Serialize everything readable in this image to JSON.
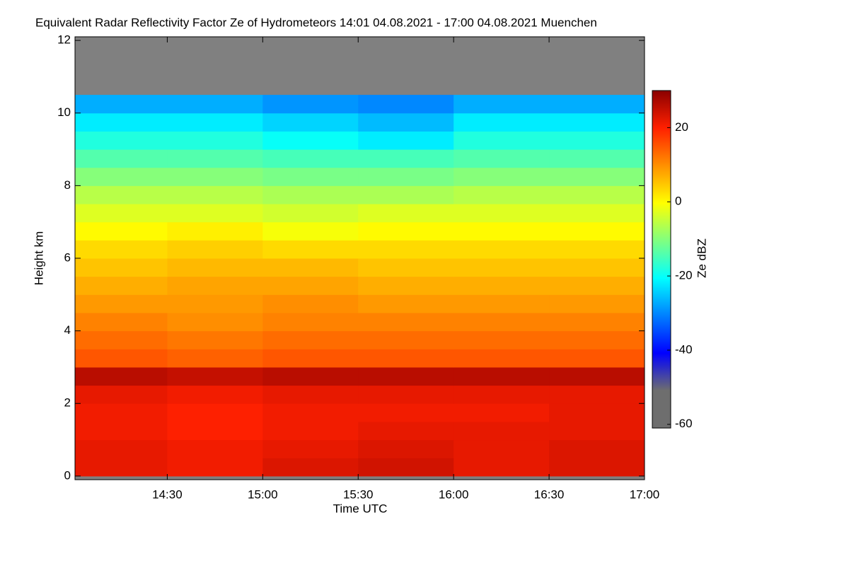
{
  "chart_data": {
    "type": "heatmap",
    "title": "Equivalent Radar Reflectivity Factor Ze of Hydrometeors   14:01 04.08.2021 - 17:00 04.08.2021 Muenchen",
    "xlabel": "Time UTC",
    "ylabel": "Height km",
    "colorbar_label": "Ze dBZ",
    "xlim": [
      841,
      1020
    ],
    "xticks": [
      {
        "value": 870,
        "label": "14:30"
      },
      {
        "value": 900,
        "label": "15:00"
      },
      {
        "value": 930,
        "label": "15:30"
      },
      {
        "value": 960,
        "label": "16:00"
      },
      {
        "value": 990,
        "label": "16:30"
      },
      {
        "value": 1020,
        "label": "17:00"
      }
    ],
    "ylim": [
      -0.1,
      12.1
    ],
    "yticks": [
      0,
      2,
      4,
      6,
      8,
      10,
      12
    ],
    "clim": [
      -61,
      30
    ],
    "cticks": [
      -60,
      -40,
      -20,
      0,
      20
    ],
    "colormap": [
      "#6e6e6e",
      "#6e6e6e",
      "#0000ff",
      "#0080ff",
      "#00ffff",
      "#80ff80",
      "#ffff00",
      "#ff9000",
      "#ff2000",
      "#8b0000"
    ],
    "background_color": "#808080",
    "xbins": [
      841,
      870,
      900,
      930,
      960,
      990,
      1020
    ],
    "ybins": [
      0,
      0.5,
      1,
      1.5,
      2,
      2.5,
      3,
      3.5,
      4,
      4.5,
      5,
      5.5,
      6,
      6.5,
      7,
      7.5,
      8,
      8.5,
      9,
      9.5,
      10,
      10.5
    ],
    "z": [
      [
        22,
        21,
        23,
        24,
        22,
        23
      ],
      [
        22,
        21,
        22,
        23,
        22,
        23
      ],
      [
        21,
        20,
        21,
        22,
        22,
        22
      ],
      [
        21,
        20,
        21,
        21,
        21,
        22
      ],
      [
        22,
        21,
        22,
        22,
        22,
        22
      ],
      [
        26,
        25,
        26,
        26,
        26,
        26
      ],
      [
        15,
        14,
        15,
        15,
        15,
        15
      ],
      [
        13,
        12,
        13,
        13,
        13,
        13
      ],
      [
        11,
        10,
        11,
        11,
        11,
        11
      ],
      [
        9,
        9,
        10,
        9,
        9,
        9
      ],
      [
        7,
        8,
        8,
        7,
        7,
        7
      ],
      [
        5,
        6,
        6,
        5,
        5,
        5
      ],
      [
        3,
        4,
        3,
        3,
        3,
        3
      ],
      [
        0,
        1,
        -1,
        0,
        0,
        0
      ],
      [
        -3,
        -3,
        -4,
        -3,
        -3,
        -3
      ],
      [
        -6,
        -6,
        -7,
        -7,
        -6,
        -6
      ],
      [
        -10,
        -10,
        -11,
        -11,
        -10,
        -10
      ],
      [
        -14,
        -14,
        -15,
        -15,
        -14,
        -14
      ],
      [
        -18,
        -18,
        -20,
        -22,
        -18,
        -18
      ],
      [
        -22,
        -22,
        -24,
        -26,
        -22,
        -22
      ],
      [
        -27,
        -27,
        -29,
        -30,
        -27,
        -27
      ]
    ]
  }
}
